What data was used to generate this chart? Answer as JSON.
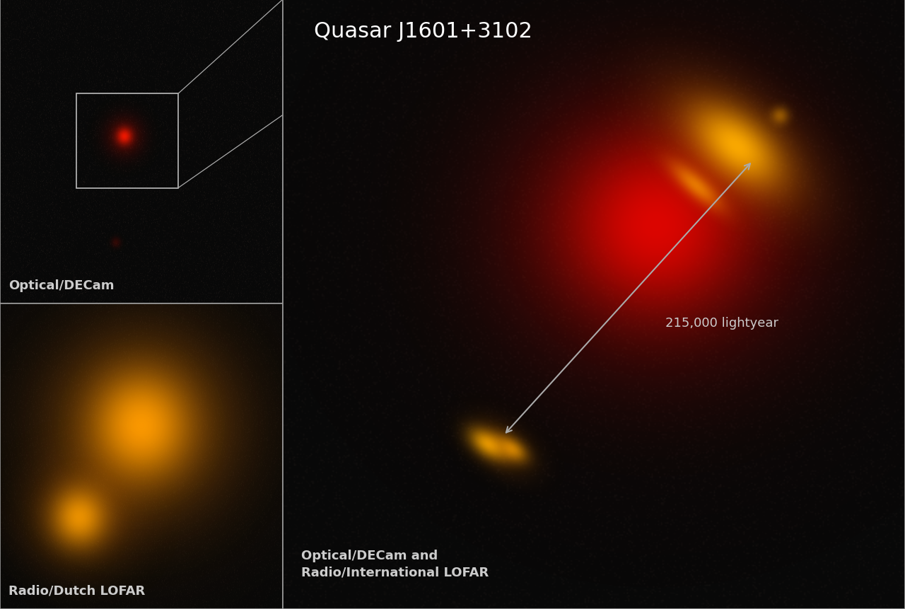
{
  "title": "Quasar J1601+3102",
  "bg_color": "#080808",
  "border_color": "#999999",
  "label_optical": "Optical/DECam",
  "label_radio": "Radio/Dutch LOFAR",
  "label_combined": "Optical/DECam and\nRadio/International LOFAR",
  "arrow_label": "215,000 lightyear",
  "label_fontsize": 13,
  "title_fontsize": 22,
  "arrow_label_fontsize": 13,
  "text_color": "#cccccc",
  "noise_alpha": 0.03
}
